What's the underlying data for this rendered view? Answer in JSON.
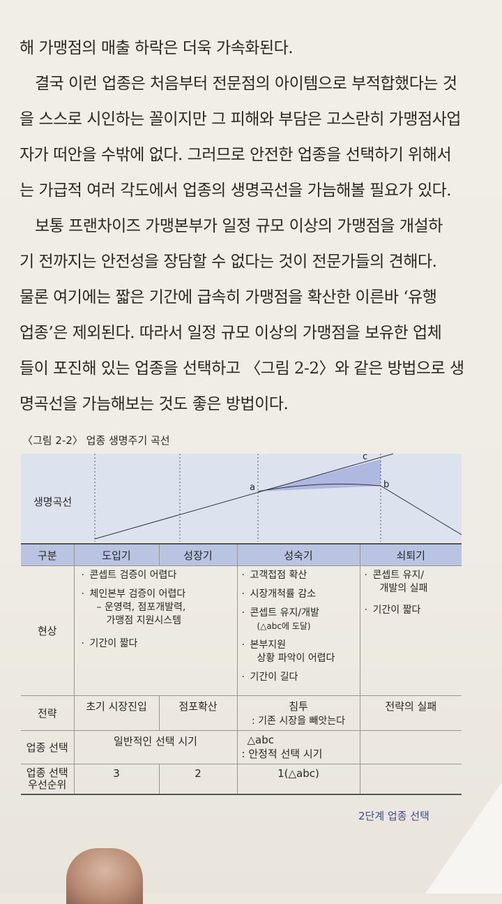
{
  "body": {
    "lines": [
      "해 가맹점의 매출 하락은 더욱 가속화된다.",
      "결국 이런 업종은 처음부터 전문점의 아이템으로 부적합했다는 것",
      "을 스스로 시인하는 꼴이지만 그 피해와 부담은 고스란히 가맹점사업",
      "자가 떠안을 수밖에 없다. 그러므로 안전한 업종을 선택하기 위해서",
      "는 가급적 여러 각도에서 업종의 생명곡선을 가늠해볼 필요가 있다.",
      "보통 프랜차이즈 가맹본부가 일정 규모 이상의 가맹점을 개설하",
      "기 전까지는 안전성을 장담할 수 없다는 것이 전문가들의 견해다.",
      "물론 여기에는 짧은 기간에 급속히 가맹점을 확산한 이른바 ‘유행",
      "업종’은 제외된다. 따라서 일정 규모 이상의 가맹점을 보유한 업체",
      "들이 포진해 있는 업종을 선택하고 〈그림 2-2〉와 같은 방법으로 생",
      "명곡선을 가늠해보는 것도 좋은 방법이다."
    ]
  },
  "figure": {
    "caption": "〈그림 2-2〉 업종 생명주기 곡선",
    "curve_label": "생명곡선",
    "point_a": "a",
    "point_b": "b",
    "point_c": "c",
    "table": {
      "headers": [
        "구분",
        "도입기",
        "성장기",
        "성숙기",
        "쇠퇴기"
      ],
      "phenomenon": {
        "label": "현상",
        "intro_growth": [
          "콘셉트 검증이 어렵다",
          "체인본부 검증이 어렵다",
          "– 운영력, 점포개발력,",
          "가맹점 지원시스템",
          "기간이 짧다"
        ],
        "mature": [
          "고객접점 확산",
          "시장개척률 감소",
          "콘셉트 유지/개발",
          "(△abc에 도달)",
          "본부지원",
          "상황 파악이 어렵다",
          "기간이 길다"
        ],
        "decline": [
          "콘셉트 유지/",
          "개발의 실패",
          "기간이 짧다"
        ]
      },
      "strategy": {
        "label": "전략",
        "intro": "초기 시장진입",
        "growth": "점포확산",
        "mature_1": "침투",
        "mature_2": ": 기존 시장을 빼앗는다",
        "decline": "전략의 실패"
      },
      "selection": {
        "label": "업종 선택",
        "intro_growth": "일반적인 선택 시기",
        "mature_1": "△abc",
        "mature_2": ": 안정적 선택 시기"
      },
      "priority": {
        "label_1": "업종 선택",
        "label_2": "우선순위",
        "intro": "3",
        "growth": "2",
        "mature": "1(△abc)"
      }
    }
  },
  "footer": {
    "chapter": "2단계 업종 선택"
  },
  "colors": {
    "accent": "#b9c3e2",
    "footer": "#3b4a8c"
  }
}
